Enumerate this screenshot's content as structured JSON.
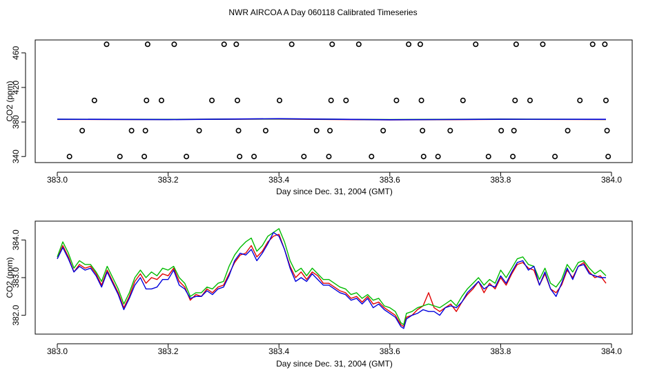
{
  "page_title": "NWR AIRCOA A  Day 060118  Calibrated Timeseries",
  "colors": {
    "red": "#e00000",
    "green": "#00bb00",
    "blue": "#0000dd",
    "axis": "#000000"
  },
  "chart_data": [
    {
      "type": "scatter",
      "xlabel": "Day since Dec. 31, 2004 (GMT)",
      "ylabel": "CO2 (ppm)",
      "xlim": [
        383.0,
        384.0
      ],
      "ylim": [
        333,
        475
      ],
      "xticks": [
        383.0,
        383.2,
        383.4,
        383.6,
        383.8,
        384.0
      ],
      "xtick_labels": [
        "383.0",
        "383.2",
        "383.4",
        "383.6",
        "383.8",
        "384.0"
      ],
      "yticks": [
        340,
        380,
        420,
        460
      ],
      "ytick_labels": [
        "340",
        "380",
        "420",
        "460"
      ],
      "points": [
        {
          "x": 383.022,
          "y": 340
        },
        {
          "x": 383.045,
          "y": 370
        },
        {
          "x": 383.067,
          "y": 405
        },
        {
          "x": 383.089,
          "y": 470
        },
        {
          "x": 383.113,
          "y": 340
        },
        {
          "x": 383.134,
          "y": 370
        },
        {
          "x": 383.157,
          "y": 340
        },
        {
          "x": 383.159,
          "y": 370
        },
        {
          "x": 383.161,
          "y": 405
        },
        {
          "x": 383.163,
          "y": 470
        },
        {
          "x": 383.188,
          "y": 405
        },
        {
          "x": 383.211,
          "y": 470
        },
        {
          "x": 383.233,
          "y": 340
        },
        {
          "x": 383.256,
          "y": 370
        },
        {
          "x": 383.279,
          "y": 405
        },
        {
          "x": 383.301,
          "y": 470
        },
        {
          "x": 383.323,
          "y": 470
        },
        {
          "x": 383.325,
          "y": 405
        },
        {
          "x": 383.327,
          "y": 370
        },
        {
          "x": 383.329,
          "y": 340
        },
        {
          "x": 383.355,
          "y": 340
        },
        {
          "x": 383.376,
          "y": 370
        },
        {
          "x": 383.401,
          "y": 405
        },
        {
          "x": 383.423,
          "y": 470
        },
        {
          "x": 383.445,
          "y": 340
        },
        {
          "x": 383.468,
          "y": 370
        },
        {
          "x": 383.49,
          "y": 340
        },
        {
          "x": 383.492,
          "y": 370
        },
        {
          "x": 383.494,
          "y": 405
        },
        {
          "x": 383.496,
          "y": 470
        },
        {
          "x": 383.521,
          "y": 405
        },
        {
          "x": 383.544,
          "y": 470
        },
        {
          "x": 383.567,
          "y": 340
        },
        {
          "x": 383.588,
          "y": 370
        },
        {
          "x": 383.612,
          "y": 405
        },
        {
          "x": 383.634,
          "y": 470
        },
        {
          "x": 383.655,
          "y": 470
        },
        {
          "x": 383.657,
          "y": 405
        },
        {
          "x": 383.659,
          "y": 370
        },
        {
          "x": 383.661,
          "y": 340
        },
        {
          "x": 383.687,
          "y": 340
        },
        {
          "x": 383.709,
          "y": 370
        },
        {
          "x": 383.732,
          "y": 405
        },
        {
          "x": 383.755,
          "y": 470
        },
        {
          "x": 383.778,
          "y": 340
        },
        {
          "x": 383.801,
          "y": 370
        },
        {
          "x": 383.822,
          "y": 340
        },
        {
          "x": 383.824,
          "y": 370
        },
        {
          "x": 383.826,
          "y": 405
        },
        {
          "x": 383.828,
          "y": 470
        },
        {
          "x": 383.853,
          "y": 405
        },
        {
          "x": 383.876,
          "y": 470
        },
        {
          "x": 383.898,
          "y": 340
        },
        {
          "x": 383.921,
          "y": 370
        },
        {
          "x": 383.943,
          "y": 405
        },
        {
          "x": 383.966,
          "y": 470
        },
        {
          "x": 383.988,
          "y": 470
        },
        {
          "x": 383.99,
          "y": 405
        },
        {
          "x": 383.992,
          "y": 370
        },
        {
          "x": 383.994,
          "y": 340
        }
      ],
      "series": [
        {
          "name": "red",
          "color": "#e00000",
          "x": [
            383.0,
            383.2,
            383.4,
            383.6,
            383.8,
            383.99
          ],
          "y": [
            383.0,
            382.9,
            383.4,
            382.5,
            383.1,
            382.9
          ]
        },
        {
          "name": "green",
          "color": "#00bb00",
          "x": [
            383.0,
            383.2,
            383.4,
            383.6,
            383.8,
            383.99
          ],
          "y": [
            383.1,
            383.0,
            383.6,
            382.8,
            383.3,
            383.0
          ]
        },
        {
          "name": "blue",
          "color": "#0000dd",
          "x": [
            383.0,
            383.2,
            383.4,
            383.6,
            383.8,
            383.99
          ],
          "y": [
            383.2,
            382.8,
            383.8,
            382.6,
            383.2,
            383.1
          ]
        }
      ]
    },
    {
      "type": "line",
      "xlabel": "Day since Dec. 31, 2004 (GMT)",
      "ylabel": "CO2 (ppm)",
      "xlim": [
        383.0,
        384.0
      ],
      "ylim": [
        381.5,
        384.5
      ],
      "xticks": [
        383.0,
        383.2,
        383.4,
        383.6,
        383.8,
        384.0
      ],
      "xtick_labels": [
        "383.0",
        "383.2",
        "383.4",
        "383.6",
        "383.8",
        "384.0"
      ],
      "yticks": [
        382.0,
        383.0,
        384.0
      ],
      "ytick_labels": [
        "382.0",
        "383.0",
        "384.0"
      ],
      "series": [
        {
          "name": "red",
          "color": "#e00000",
          "x": [
            383.0,
            383.01,
            383.02,
            383.03,
            383.04,
            383.05,
            383.06,
            383.07,
            383.08,
            383.09,
            383.1,
            383.11,
            383.12,
            383.13,
            383.14,
            383.15,
            383.16,
            383.17,
            383.18,
            383.19,
            383.2,
            383.21,
            383.22,
            383.23,
            383.24,
            383.25,
            383.26,
            383.27,
            383.28,
            383.29,
            383.3,
            383.31,
            383.32,
            383.33,
            383.34,
            383.35,
            383.36,
            383.37,
            383.38,
            383.39,
            383.4,
            383.41,
            383.42,
            383.43,
            383.44,
            383.45,
            383.46,
            383.47,
            383.48,
            383.49,
            383.5,
            383.51,
            383.52,
            383.53,
            383.54,
            383.55,
            383.56,
            383.57,
            383.58,
            383.59,
            383.6,
            383.61,
            383.62,
            383.625,
            383.63,
            383.64,
            383.65,
            383.66,
            383.67,
            383.68,
            383.69,
            383.7,
            383.71,
            383.72,
            383.73,
            383.74,
            383.75,
            383.76,
            383.77,
            383.78,
            383.79,
            383.8,
            383.81,
            383.82,
            383.83,
            383.84,
            383.85,
            383.86,
            383.87,
            383.88,
            383.89,
            383.9,
            383.91,
            383.92,
            383.93,
            383.94,
            383.95,
            383.96,
            383.97,
            383.98,
            383.99
          ],
          "y": [
            383.5,
            383.85,
            383.55,
            383.15,
            383.35,
            383.25,
            383.3,
            383.1,
            382.8,
            383.2,
            382.9,
            382.6,
            382.2,
            382.5,
            382.9,
            383.1,
            382.85,
            383.0,
            382.95,
            383.1,
            383.05,
            383.25,
            382.9,
            382.75,
            382.4,
            382.55,
            382.5,
            382.7,
            382.6,
            382.75,
            382.8,
            383.1,
            383.4,
            383.6,
            383.65,
            383.85,
            383.55,
            383.7,
            383.95,
            384.1,
            384.15,
            383.75,
            383.3,
            383.0,
            383.15,
            382.95,
            383.15,
            383.05,
            382.85,
            382.85,
            382.75,
            382.65,
            382.6,
            382.45,
            382.5,
            382.35,
            382.5,
            382.3,
            382.35,
            382.2,
            382.1,
            382.0,
            381.75,
            381.7,
            381.95,
            382.0,
            382.15,
            382.25,
            382.6,
            382.2,
            382.1,
            382.2,
            382.3,
            382.1,
            382.35,
            382.55,
            382.7,
            382.9,
            382.6,
            382.85,
            382.7,
            383.0,
            382.8,
            383.1,
            383.35,
            383.4,
            383.25,
            383.2,
            382.8,
            383.1,
            382.7,
            382.6,
            382.8,
            383.2,
            383.0,
            383.3,
            383.4,
            383.15,
            383.0,
            383.05,
            382.85
          ]
        },
        {
          "name": "green",
          "color": "#00bb00",
          "x": [
            383.0,
            383.01,
            383.02,
            383.03,
            383.04,
            383.05,
            383.06,
            383.07,
            383.08,
            383.09,
            383.1,
            383.11,
            383.12,
            383.13,
            383.14,
            383.15,
            383.16,
            383.17,
            383.18,
            383.19,
            383.2,
            383.21,
            383.22,
            383.23,
            383.24,
            383.25,
            383.26,
            383.27,
            383.28,
            383.29,
            383.3,
            383.31,
            383.32,
            383.33,
            383.34,
            383.35,
            383.36,
            383.37,
            383.38,
            383.39,
            383.4,
            383.41,
            383.42,
            383.43,
            383.44,
            383.45,
            383.46,
            383.47,
            383.48,
            383.49,
            383.5,
            383.51,
            383.52,
            383.53,
            383.54,
            383.55,
            383.56,
            383.57,
            383.58,
            383.59,
            383.6,
            383.61,
            383.62,
            383.625,
            383.63,
            383.64,
            383.65,
            383.66,
            383.67,
            383.68,
            383.69,
            383.7,
            383.71,
            383.72,
            383.73,
            383.74,
            383.75,
            383.76,
            383.77,
            383.78,
            383.79,
            383.8,
            383.81,
            383.82,
            383.83,
            383.84,
            383.85,
            383.86,
            383.87,
            383.88,
            383.89,
            383.9,
            383.91,
            383.92,
            383.93,
            383.94,
            383.95,
            383.96,
            383.97,
            383.98,
            383.99
          ],
          "y": [
            383.55,
            383.95,
            383.65,
            383.25,
            383.45,
            383.35,
            383.35,
            383.15,
            382.9,
            383.3,
            383.0,
            382.7,
            382.3,
            382.6,
            383.0,
            383.2,
            383.0,
            383.15,
            383.05,
            383.25,
            383.2,
            383.3,
            383.0,
            382.85,
            382.5,
            382.6,
            382.6,
            382.75,
            382.7,
            382.85,
            382.9,
            383.3,
            383.6,
            383.8,
            383.95,
            384.05,
            383.7,
            383.85,
            384.1,
            384.2,
            384.3,
            383.95,
            383.45,
            383.15,
            383.25,
            383.05,
            383.25,
            383.1,
            382.95,
            382.95,
            382.85,
            382.75,
            382.7,
            382.55,
            382.6,
            382.45,
            382.55,
            382.4,
            382.45,
            382.25,
            382.2,
            382.1,
            381.8,
            381.75,
            382.05,
            382.1,
            382.2,
            382.25,
            382.3,
            382.25,
            382.2,
            382.3,
            382.4,
            382.25,
            382.5,
            382.7,
            382.85,
            383.0,
            382.8,
            382.95,
            382.85,
            383.2,
            383.0,
            383.25,
            383.5,
            383.55,
            383.35,
            383.3,
            382.95,
            383.25,
            382.85,
            382.75,
            382.95,
            383.35,
            383.15,
            383.4,
            383.45,
            383.25,
            383.1,
            383.2,
            383.05
          ]
        },
        {
          "name": "blue",
          "color": "#0000dd",
          "x": [
            383.0,
            383.01,
            383.02,
            383.03,
            383.04,
            383.05,
            383.06,
            383.07,
            383.08,
            383.09,
            383.1,
            383.11,
            383.12,
            383.13,
            383.14,
            383.15,
            383.16,
            383.17,
            383.18,
            383.19,
            383.2,
            383.21,
            383.22,
            383.23,
            383.24,
            383.25,
            383.26,
            383.27,
            383.28,
            383.29,
            383.3,
            383.31,
            383.32,
            383.33,
            383.34,
            383.35,
            383.36,
            383.37,
            383.38,
            383.39,
            383.4,
            383.41,
            383.42,
            383.43,
            383.44,
            383.45,
            383.46,
            383.47,
            383.48,
            383.49,
            383.5,
            383.51,
            383.52,
            383.53,
            383.54,
            383.55,
            383.56,
            383.57,
            383.58,
            383.59,
            383.6,
            383.61,
            383.62,
            383.625,
            383.63,
            383.64,
            383.65,
            383.66,
            383.67,
            383.68,
            383.69,
            383.7,
            383.71,
            383.72,
            383.73,
            383.74,
            383.75,
            383.76,
            383.77,
            383.78,
            383.79,
            383.8,
            383.81,
            383.82,
            383.83,
            383.84,
            383.85,
            383.86,
            383.87,
            383.88,
            383.89,
            383.9,
            383.91,
            383.92,
            383.93,
            383.94,
            383.95,
            383.96,
            383.97,
            383.98,
            383.99
          ],
          "y": [
            383.5,
            383.8,
            383.5,
            383.15,
            383.3,
            383.2,
            383.25,
            383.05,
            382.75,
            383.15,
            382.85,
            382.55,
            382.15,
            382.45,
            382.8,
            383.0,
            382.7,
            382.7,
            382.75,
            382.95,
            382.95,
            383.2,
            382.8,
            382.7,
            382.45,
            382.5,
            382.5,
            382.65,
            382.55,
            382.7,
            382.75,
            383.05,
            383.45,
            383.65,
            383.6,
            383.75,
            383.45,
            383.65,
            383.9,
            384.2,
            384.1,
            383.75,
            383.25,
            382.9,
            383.0,
            382.9,
            383.1,
            382.95,
            382.8,
            382.8,
            382.7,
            382.6,
            382.55,
            382.4,
            382.45,
            382.3,
            382.45,
            382.2,
            382.3,
            382.15,
            382.05,
            381.95,
            381.7,
            381.65,
            381.9,
            382.0,
            382.05,
            382.15,
            382.1,
            382.1,
            382.0,
            382.2,
            382.25,
            382.2,
            382.35,
            382.6,
            382.75,
            382.9,
            382.7,
            382.8,
            382.75,
            383.05,
            382.85,
            383.15,
            383.4,
            383.45,
            383.2,
            383.3,
            382.8,
            383.15,
            382.7,
            382.5,
            382.85,
            383.25,
            382.95,
            383.3,
            383.35,
            383.1,
            383.05,
            383.0,
            383.0
          ]
        }
      ]
    }
  ]
}
